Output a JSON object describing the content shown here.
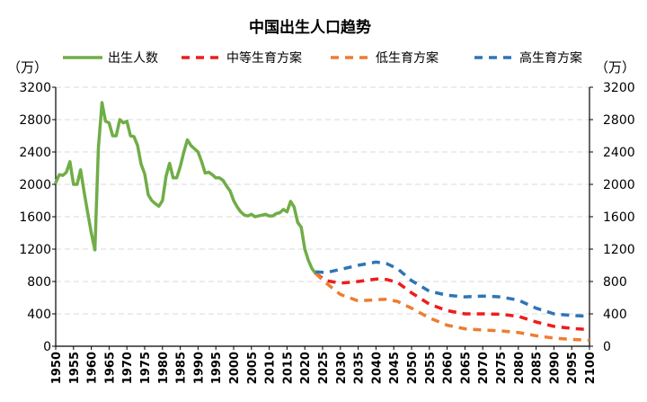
{
  "chart_data": {
    "type": "line",
    "title": "中国出生人口趋势",
    "ylabel_left": "（万）",
    "ylabel_right": "（万）",
    "ylim": [
      0,
      3200
    ],
    "yticks": [
      0,
      400,
      800,
      1200,
      1600,
      2000,
      2400,
      2800,
      3200
    ],
    "xlim": [
      1950,
      2100
    ],
    "xticks": [
      1950,
      1955,
      1960,
      1965,
      1970,
      1975,
      1980,
      1985,
      1990,
      1995,
      2000,
      2005,
      2010,
      2015,
      2020,
      2025,
      2030,
      2035,
      2040,
      2045,
      2050,
      2055,
      2060,
      2065,
      2070,
      2075,
      2080,
      2085,
      2090,
      2095,
      2100
    ],
    "grid": true,
    "legend_position": "top",
    "series": [
      {
        "name": "出生人数",
        "color": "#70ad47",
        "style": "solid",
        "points": [
          [
            1950,
            2020
          ],
          [
            1951,
            2120
          ],
          [
            1952,
            2110
          ],
          [
            1953,
            2150
          ],
          [
            1954,
            2280
          ],
          [
            1955,
            2000
          ],
          [
            1956,
            2000
          ],
          [
            1957,
            2180
          ],
          [
            1958,
            1900
          ],
          [
            1959,
            1650
          ],
          [
            1960,
            1400
          ],
          [
            1961,
            1190
          ],
          [
            1962,
            2450
          ],
          [
            1963,
            3010
          ],
          [
            1964,
            2780
          ],
          [
            1965,
            2760
          ],
          [
            1966,
            2600
          ],
          [
            1967,
            2600
          ],
          [
            1968,
            2800
          ],
          [
            1969,
            2760
          ],
          [
            1970,
            2780
          ],
          [
            1971,
            2600
          ],
          [
            1972,
            2590
          ],
          [
            1973,
            2480
          ],
          [
            1974,
            2250
          ],
          [
            1975,
            2130
          ],
          [
            1976,
            1870
          ],
          [
            1977,
            1800
          ],
          [
            1978,
            1760
          ],
          [
            1979,
            1730
          ],
          [
            1980,
            1800
          ],
          [
            1981,
            2100
          ],
          [
            1982,
            2260
          ],
          [
            1983,
            2080
          ],
          [
            1984,
            2080
          ],
          [
            1985,
            2220
          ],
          [
            1986,
            2400
          ],
          [
            1987,
            2550
          ],
          [
            1988,
            2480
          ],
          [
            1989,
            2440
          ],
          [
            1990,
            2400
          ],
          [
            1991,
            2280
          ],
          [
            1992,
            2140
          ],
          [
            1993,
            2150
          ],
          [
            1994,
            2120
          ],
          [
            1995,
            2080
          ],
          [
            1996,
            2080
          ],
          [
            1997,
            2050
          ],
          [
            1998,
            1980
          ],
          [
            1999,
            1920
          ],
          [
            2000,
            1800
          ],
          [
            2001,
            1720
          ],
          [
            2002,
            1660
          ],
          [
            2003,
            1620
          ],
          [
            2004,
            1610
          ],
          [
            2005,
            1630
          ],
          [
            2006,
            1600
          ],
          [
            2007,
            1610
          ],
          [
            2008,
            1620
          ],
          [
            2009,
            1630
          ],
          [
            2010,
            1610
          ],
          [
            2011,
            1610
          ],
          [
            2012,
            1640
          ],
          [
            2013,
            1650
          ],
          [
            2014,
            1690
          ],
          [
            2015,
            1660
          ],
          [
            2016,
            1790
          ],
          [
            2017,
            1720
          ],
          [
            2018,
            1530
          ],
          [
            2019,
            1470
          ],
          [
            2020,
            1200
          ],
          [
            2021,
            1060
          ],
          [
            2022,
            960
          ],
          [
            2023,
            900
          ]
        ]
      },
      {
        "name": "中等生育方案",
        "color": "#ee1c1c",
        "style": "dashed",
        "points": [
          [
            2023,
            900
          ],
          [
            2026,
            810
          ],
          [
            2030,
            780
          ],
          [
            2035,
            800
          ],
          [
            2040,
            830
          ],
          [
            2043,
            825
          ],
          [
            2046,
            790
          ],
          [
            2050,
            660
          ],
          [
            2055,
            520
          ],
          [
            2060,
            440
          ],
          [
            2065,
            400
          ],
          [
            2070,
            400
          ],
          [
            2075,
            395
          ],
          [
            2080,
            370
          ],
          [
            2085,
            300
          ],
          [
            2090,
            245
          ],
          [
            2095,
            220
          ],
          [
            2100,
            205
          ]
        ]
      },
      {
        "name": "低生育方案",
        "color": "#ed7d31",
        "style": "dashed",
        "points": [
          [
            2023,
            900
          ],
          [
            2026,
            780
          ],
          [
            2030,
            640
          ],
          [
            2035,
            560
          ],
          [
            2040,
            575
          ],
          [
            2043,
            580
          ],
          [
            2046,
            555
          ],
          [
            2050,
            470
          ],
          [
            2055,
            350
          ],
          [
            2060,
            260
          ],
          [
            2065,
            215
          ],
          [
            2070,
            200
          ],
          [
            2075,
            190
          ],
          [
            2080,
            170
          ],
          [
            2085,
            130
          ],
          [
            2090,
            100
          ],
          [
            2095,
            85
          ],
          [
            2100,
            75
          ]
        ]
      },
      {
        "name": "高生育方案",
        "color": "#2e75b6",
        "style": "dashed",
        "points": [
          [
            2023,
            920
          ],
          [
            2026,
            910
          ],
          [
            2030,
            950
          ],
          [
            2035,
            1000
          ],
          [
            2040,
            1040
          ],
          [
            2043,
            1020
          ],
          [
            2046,
            960
          ],
          [
            2050,
            810
          ],
          [
            2055,
            680
          ],
          [
            2060,
            630
          ],
          [
            2065,
            610
          ],
          [
            2070,
            620
          ],
          [
            2075,
            610
          ],
          [
            2080,
            570
          ],
          [
            2085,
            470
          ],
          [
            2090,
            400
          ],
          [
            2095,
            380
          ],
          [
            2100,
            370
          ]
        ]
      }
    ]
  }
}
